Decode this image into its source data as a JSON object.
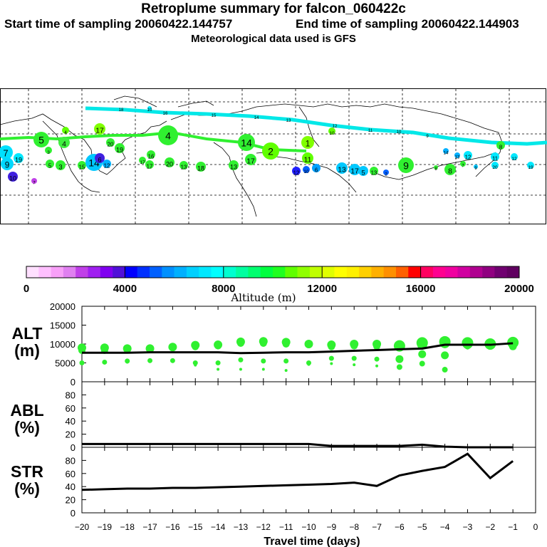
{
  "header": {
    "title": "Retroplume summary for falcon_060422c",
    "start": "Start time of sampling 20060422.144757",
    "end": "End time of sampling 20060422.144903",
    "met": "Meteorological data used is GFS"
  },
  "map": {
    "tracks": [
      {
        "name": "upper-track",
        "color": "#00e8e8",
        "labels": [
          "18",
          "16",
          "15",
          "14",
          "13",
          "12",
          "11",
          "10",
          "9"
        ]
      },
      {
        "name": "middle-track",
        "color": "#30f030",
        "labels": [
          "6",
          "5",
          "4",
          "3",
          "2",
          "1"
        ]
      }
    ],
    "marker_labels": [
      "7",
      "9",
      "19",
      "5",
      "3",
      "4",
      "4",
      "17",
      "20",
      "19",
      "5",
      "3",
      "15",
      "14",
      "12",
      "16",
      "17",
      "17",
      "20",
      "13",
      "18",
      "13",
      "17",
      "14",
      "2",
      "1",
      "11",
      "12",
      "6",
      "13",
      "17",
      "5",
      "13",
      "2",
      "9",
      "8",
      "8",
      "7",
      "9",
      "20",
      "19",
      "10",
      "14",
      "13",
      "12",
      "11",
      "12",
      "8",
      "4",
      "10",
      "10",
      "7",
      "6",
      "10"
    ]
  },
  "colorbar": {
    "colors": [
      "#ffe0ff",
      "#ffc0ff",
      "#f8a0f8",
      "#e080f0",
      "#c040e8",
      "#a020f0",
      "#8000f0",
      "#5010d8",
      "#0000ff",
      "#0030ff",
      "#0060ff",
      "#0090ff",
      "#00b0ff",
      "#00d0ff",
      "#00e8ff",
      "#00ffff",
      "#00ffd0",
      "#00ffa0",
      "#00ff70",
      "#00ff40",
      "#20ff20",
      "#60ff00",
      "#90ff00",
      "#c0ff00",
      "#e0ff00",
      "#ffff00",
      "#fff000",
      "#ffd000",
      "#ffb000",
      "#ff9000",
      "#ff6000",
      "#ff0000",
      "#ff0060",
      "#ff0090",
      "#f000a0",
      "#d000a0",
      "#b00090",
      "#900080",
      "#700070",
      "#600060"
    ],
    "ticks": [
      "0",
      "4000",
      "8000",
      "12000",
      "16000",
      "20000"
    ],
    "label": "Altitude (m)"
  },
  "panels": {
    "alt": {
      "label1": "ALT",
      "label2": "(m)"
    },
    "abl": {
      "label1": "ABL",
      "label2": "(%)"
    },
    "str": {
      "label1": "STR",
      "label2": "(%)"
    }
  },
  "chart_data": {
    "type": "line",
    "x": [
      -20,
      -19,
      -18,
      -17,
      -16,
      -15,
      -14,
      -13,
      -12,
      -11,
      -10,
      -9,
      -8,
      -7,
      -6,
      -5,
      -4,
      -3,
      -2,
      -1
    ],
    "xlabel": "Travel time (days)",
    "xticks": [
      "−20",
      "−19",
      "−18",
      "−17",
      "−16",
      "−15",
      "−14",
      "−13",
      "−12",
      "−11",
      "−10",
      "−9",
      "−8",
      "−7",
      "−6",
      "−5",
      "−4",
      "−3",
      "−2",
      "−1",
      "0"
    ],
    "xlim": [
      -20,
      0
    ],
    "alt": {
      "ylabel": "ALT (m)",
      "ylim": [
        0,
        20000
      ],
      "yticks": [
        "0",
        "5000",
        "10000",
        "15000",
        "20000"
      ],
      "median": [
        7700,
        7700,
        7700,
        7800,
        7800,
        7800,
        7800,
        7600,
        7700,
        7800,
        7800,
        8000,
        8200,
        8400,
        8600,
        8800,
        9800,
        9800,
        9800,
        10200
      ],
      "dots_mid": [
        8300,
        8300,
        8500,
        8500,
        9000,
        9300,
        9500,
        10200,
        10200,
        10000,
        9800,
        9300,
        9500,
        9400,
        9300,
        9800,
        10200,
        10000,
        9900,
        10200
      ],
      "dots_high": [
        9000,
        9000,
        8800,
        8800,
        9200,
        9700,
        9800,
        10600,
        10700,
        10500,
        10000,
        9800,
        10000,
        10000,
        9500,
        10300,
        10600,
        10300,
        10000,
        10400
      ],
      "dots_low": [
        5000,
        5200,
        5500,
        5600,
        5600,
        5000,
        5000,
        5800,
        5500,
        5500,
        5000,
        6200,
        6200,
        6000,
        6000,
        7300,
        7000,
        9800,
        9500,
        9400
      ],
      "dots_min": [
        4800,
        5000,
        5200,
        5500,
        5500,
        4400,
        3300,
        3300,
        3300,
        3000,
        4600,
        4800,
        4500,
        4200,
        3900,
        4800,
        3200,
        9300,
        9300,
        9300
      ]
    },
    "abl": {
      "ylabel": "ABL (%)",
      "ylim": [
        0,
        100
      ],
      "yticks": [
        "0",
        "20",
        "40",
        "60",
        "80"
      ],
      "values": [
        5,
        5,
        5,
        5,
        5,
        5,
        5,
        5,
        5,
        5,
        5,
        2,
        2,
        2,
        2,
        4,
        1,
        0,
        0,
        0
      ]
    },
    "str": {
      "ylabel": "STR (%)",
      "ylim": [
        0,
        100
      ],
      "yticks": [
        "0",
        "20",
        "40",
        "60",
        "80"
      ],
      "values": [
        35,
        36,
        37,
        37,
        38,
        38,
        39,
        40,
        41,
        42,
        43,
        44,
        46,
        41,
        57,
        64,
        70,
        90,
        53,
        79
      ]
    }
  }
}
